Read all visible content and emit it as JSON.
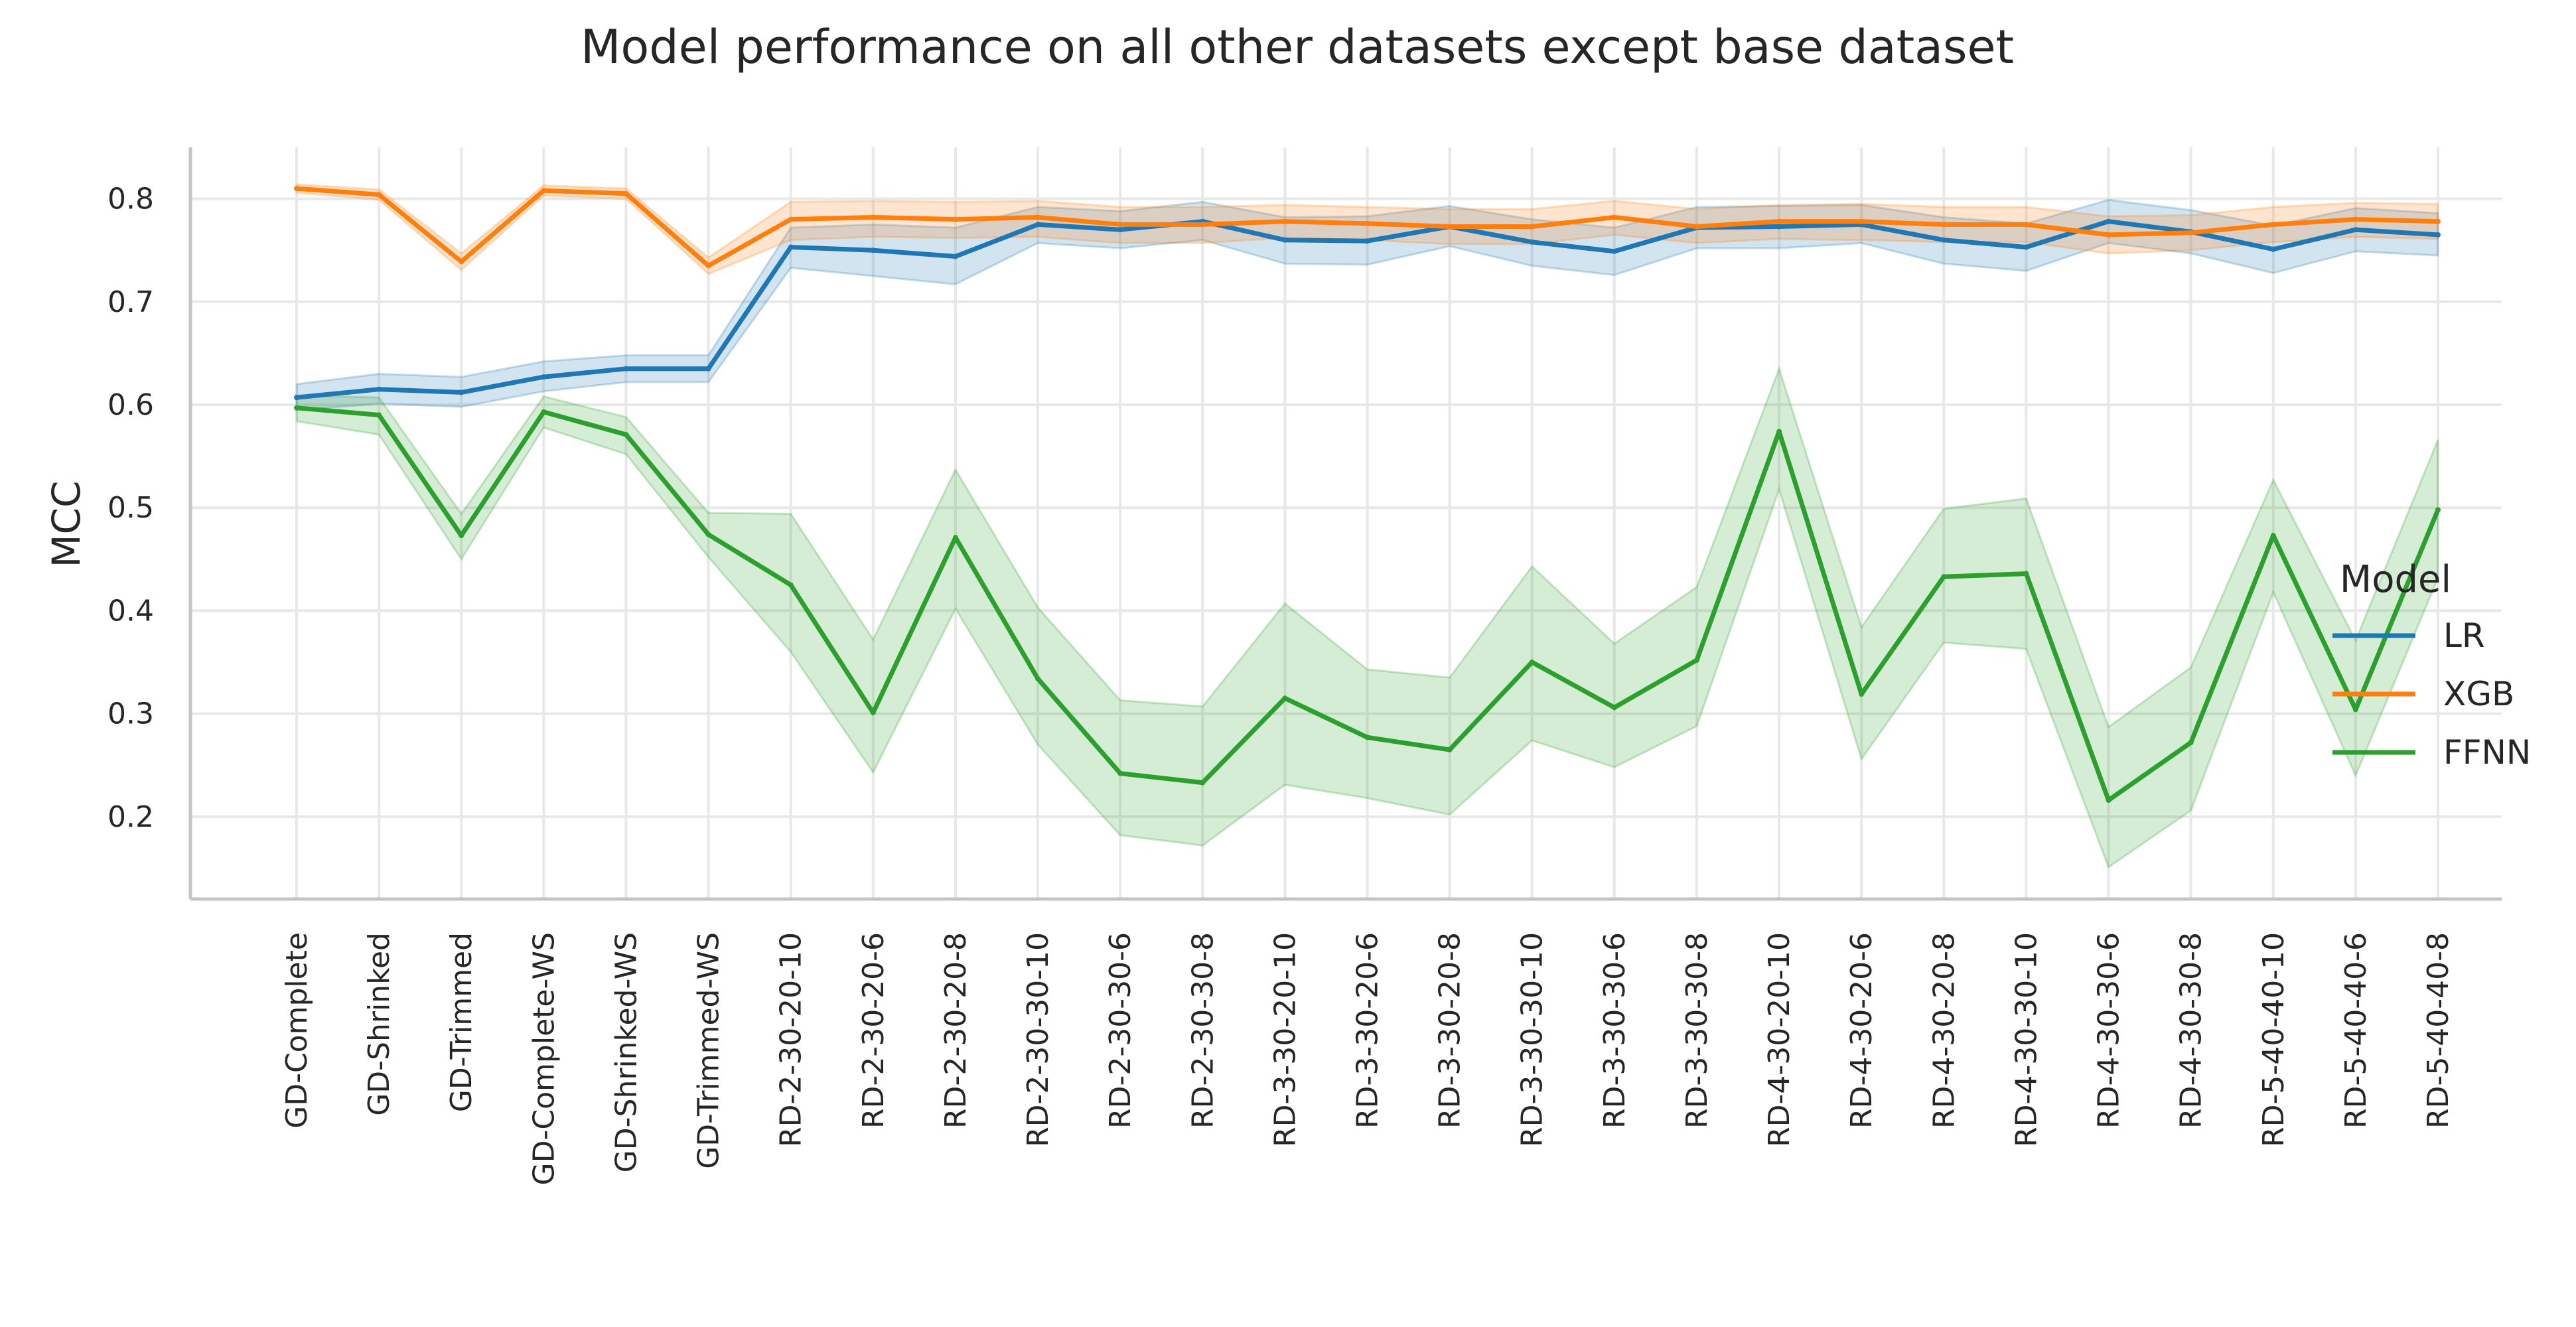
{
  "chart_data": {
    "type": "line",
    "title": "Model performance on all other datasets except base dataset",
    "xlabel": "",
    "ylabel": "MCC",
    "ylim": [
      0.12,
      0.85
    ],
    "yticks": [
      0.2,
      0.3,
      0.4,
      0.5,
      0.6,
      0.7,
      0.8
    ],
    "grid": true,
    "legend": {
      "title": "Model",
      "placement": "right"
    },
    "categories": [
      "GD-Complete",
      "GD-Shrinked",
      "GD-Trimmed",
      "GD-Complete-WS",
      "GD-Shrinked-WS",
      "GD-Trimmed-WS",
      "RD-2-30-20-10",
      "RD-2-30-20-6",
      "RD-2-30-20-8",
      "RD-2-30-30-10",
      "RD-2-30-30-6",
      "RD-2-30-30-8",
      "RD-3-30-20-10",
      "RD-3-30-20-6",
      "RD-3-30-20-8",
      "RD-3-30-30-10",
      "RD-3-30-30-6",
      "RD-3-30-30-8",
      "RD-4-30-20-10",
      "RD-4-30-20-6",
      "RD-4-30-20-8",
      "RD-4-30-30-10",
      "RD-4-30-30-6",
      "RD-4-30-30-8",
      "RD-5-40-40-10",
      "RD-5-40-40-6",
      "RD-5-40-40-8"
    ],
    "series": [
      {
        "name": "LR",
        "color": "#1f77b4",
        "values": [
          0.607,
          0.615,
          0.612,
          0.627,
          0.635,
          0.635,
          0.753,
          0.75,
          0.744,
          0.775,
          0.77,
          0.778,
          0.76,
          0.759,
          0.773,
          0.758,
          0.749,
          0.772,
          0.773,
          0.775,
          0.76,
          0.753,
          0.778,
          0.768,
          0.751,
          0.77,
          0.765
        ],
        "lower": [
          0.595,
          0.601,
          0.598,
          0.613,
          0.622,
          0.622,
          0.733,
          0.725,
          0.717,
          0.757,
          0.752,
          0.76,
          0.737,
          0.736,
          0.754,
          0.735,
          0.726,
          0.752,
          0.752,
          0.757,
          0.737,
          0.73,
          0.757,
          0.747,
          0.728,
          0.749,
          0.745
        ],
        "upper": [
          0.62,
          0.63,
          0.627,
          0.642,
          0.648,
          0.648,
          0.772,
          0.775,
          0.772,
          0.792,
          0.788,
          0.797,
          0.782,
          0.783,
          0.793,
          0.78,
          0.772,
          0.792,
          0.793,
          0.794,
          0.782,
          0.776,
          0.799,
          0.789,
          0.774,
          0.791,
          0.786
        ]
      },
      {
        "name": "XGB",
        "color": "#ff7f0e",
        "values": [
          0.81,
          0.804,
          0.739,
          0.808,
          0.805,
          0.735,
          0.78,
          0.782,
          0.78,
          0.782,
          0.775,
          0.775,
          0.778,
          0.776,
          0.773,
          0.773,
          0.782,
          0.773,
          0.778,
          0.778,
          0.775,
          0.775,
          0.765,
          0.767,
          0.775,
          0.78,
          0.778
        ],
        "lower": [
          0.806,
          0.799,
          0.731,
          0.803,
          0.8,
          0.727,
          0.76,
          0.763,
          0.762,
          0.763,
          0.757,
          0.757,
          0.762,
          0.76,
          0.756,
          0.756,
          0.765,
          0.757,
          0.761,
          0.76,
          0.758,
          0.758,
          0.747,
          0.75,
          0.758,
          0.763,
          0.761
        ],
        "upper": [
          0.814,
          0.809,
          0.747,
          0.813,
          0.81,
          0.743,
          0.797,
          0.798,
          0.797,
          0.798,
          0.792,
          0.792,
          0.794,
          0.792,
          0.79,
          0.79,
          0.798,
          0.79,
          0.794,
          0.795,
          0.792,
          0.792,
          0.783,
          0.784,
          0.792,
          0.796,
          0.795
        ]
      },
      {
        "name": "FFNN",
        "color": "#2ca02c",
        "values": [
          0.597,
          0.59,
          0.473,
          0.593,
          0.571,
          0.474,
          0.425,
          0.301,
          0.471,
          0.334,
          0.242,
          0.233,
          0.315,
          0.277,
          0.265,
          0.35,
          0.306,
          0.352,
          0.574,
          0.319,
          0.433,
          0.436,
          0.216,
          0.272,
          0.473,
          0.304,
          0.498
        ],
        "lower": [
          0.584,
          0.571,
          0.45,
          0.578,
          0.552,
          0.452,
          0.36,
          0.243,
          0.402,
          0.27,
          0.182,
          0.172,
          0.231,
          0.218,
          0.202,
          0.274,
          0.248,
          0.288,
          0.518,
          0.256,
          0.369,
          0.363,
          0.151,
          0.206,
          0.418,
          0.24,
          0.432
        ],
        "upper": [
          0.609,
          0.607,
          0.494,
          0.608,
          0.588,
          0.495,
          0.494,
          0.372,
          0.537,
          0.403,
          0.313,
          0.307,
          0.407,
          0.343,
          0.335,
          0.443,
          0.368,
          0.423,
          0.635,
          0.384,
          0.499,
          0.509,
          0.287,
          0.345,
          0.527,
          0.371,
          0.566
        ]
      }
    ]
  }
}
